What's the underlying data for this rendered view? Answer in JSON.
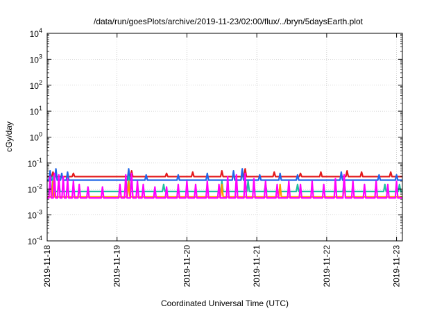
{
  "chart_data": {
    "type": "line",
    "title": "/data/run/goesPlots/archive/2019-11-23/02:00/flux/../bryn/5daysEarth.plot",
    "xlabel": "Coordinated Universal Time (UTC)",
    "ylabel": "cGy/day",
    "y_scale": "log",
    "ylim": [
      0.0001,
      10000
    ],
    "xlim": [
      "2019-11-18T00:00",
      "2019-11-23T02:00"
    ],
    "grid": true,
    "x_ticks": [
      "2019-11-18",
      "2019-11-19",
      "2019-11-20",
      "2019-11-21",
      "2019-11-22",
      "2019-11-23"
    ],
    "y_ticks": [
      {
        "value": 0.0001,
        "base": "10",
        "exp": "-4"
      },
      {
        "value": 0.001,
        "base": "10",
        "exp": "-3"
      },
      {
        "value": 0.01,
        "base": "10",
        "exp": "-2"
      },
      {
        "value": 0.1,
        "base": "10",
        "exp": "-1"
      },
      {
        "value": 1,
        "base": "10",
        "exp": "0"
      },
      {
        "value": 10,
        "base": "10",
        "exp": "1"
      },
      {
        "value": 100,
        "base": "10",
        "exp": "2"
      },
      {
        "value": 1000,
        "base": "10",
        "exp": "3"
      },
      {
        "value": 10000,
        "base": "10",
        "exp": "4"
      }
    ],
    "series": [
      {
        "color": "#e41a1c",
        "baseline": 0.03,
        "spikes": [
          {
            "x": "2019-11-18T02:00",
            "y": 0.045
          },
          {
            "x": "2019-11-18T09:00",
            "y": 0.04
          },
          {
            "x": "2019-11-19T05:00",
            "y": 0.05
          },
          {
            "x": "2019-11-19T17:00",
            "y": 0.04
          },
          {
            "x": "2019-11-20T02:00",
            "y": 0.045
          },
          {
            "x": "2019-11-20T12:00",
            "y": 0.05
          },
          {
            "x": "2019-11-20T20:00",
            "y": 0.06
          },
          {
            "x": "2019-11-21T06:00",
            "y": 0.045
          },
          {
            "x": "2019-11-21T15:00",
            "y": 0.04
          },
          {
            "x": "2019-11-21T22:00",
            "y": 0.045
          },
          {
            "x": "2019-11-22T07:00",
            "y": 0.05
          },
          {
            "x": "2019-11-22T12:00",
            "y": 0.045
          },
          {
            "x": "2019-11-22T22:00",
            "y": 0.045
          }
        ]
      },
      {
        "color": "#2166e8",
        "baseline": 0.022,
        "spikes": [
          {
            "x": "2019-11-18T01:00",
            "y": 0.05
          },
          {
            "x": "2019-11-18T03:00",
            "y": 0.06
          },
          {
            "x": "2019-11-18T05:00",
            "y": 0.04
          },
          {
            "x": "2019-11-18T07:00",
            "y": 0.045
          },
          {
            "x": "2019-11-19T04:00",
            "y": 0.06
          },
          {
            "x": "2019-11-19T10:00",
            "y": 0.035
          },
          {
            "x": "2019-11-19T21:00",
            "y": 0.035
          },
          {
            "x": "2019-11-20T07:00",
            "y": 0.04
          },
          {
            "x": "2019-11-20T16:00",
            "y": 0.05
          },
          {
            "x": "2019-11-20T19:00",
            "y": 0.06
          },
          {
            "x": "2019-11-21T01:00",
            "y": 0.035
          },
          {
            "x": "2019-11-21T08:00",
            "y": 0.04
          },
          {
            "x": "2019-11-21T14:00",
            "y": 0.035
          },
          {
            "x": "2019-11-22T05:00",
            "y": 0.045
          },
          {
            "x": "2019-11-22T18:00",
            "y": 0.035
          },
          {
            "x": "2019-11-23T00:00",
            "y": 0.035
          }
        ]
      },
      {
        "color": "#1fbf9f",
        "baseline": 0.008,
        "spikes": [
          {
            "x": "2019-11-18T02:00",
            "y": 0.03
          },
          {
            "x": "2019-11-18T04:00",
            "y": 0.02
          },
          {
            "x": "2019-11-19T04:00",
            "y": 0.03
          },
          {
            "x": "2019-11-19T16:00",
            "y": 0.015
          },
          {
            "x": "2019-11-20T12:00",
            "y": 0.02
          },
          {
            "x": "2019-11-20T21:00",
            "y": 0.02
          },
          {
            "x": "2019-11-21T03:00",
            "y": 0.015
          },
          {
            "x": "2019-11-21T14:00",
            "y": 0.015
          },
          {
            "x": "2019-11-22T06:00",
            "y": 0.02
          },
          {
            "x": "2019-11-22T20:00",
            "y": 0.015
          },
          {
            "x": "2019-11-23T01:00",
            "y": 0.015
          }
        ]
      },
      {
        "color": "#ff9900",
        "baseline": 0.005,
        "spikes": [
          {
            "x": "2019-11-18T02:00",
            "y": 0.02
          },
          {
            "x": "2019-11-19T04:00",
            "y": 0.02
          },
          {
            "x": "2019-11-20T12:00",
            "y": 0.015
          },
          {
            "x": "2019-11-21T08:00",
            "y": 0.015
          },
          {
            "x": "2019-11-22T06:00",
            "y": 0.015
          }
        ]
      },
      {
        "color": "#ff00ff",
        "baseline": 0.0045,
        "spikes": [
          {
            "x": "2019-11-18T01:00",
            "y": 0.03
          },
          {
            "x": "2019-11-18T02:30",
            "y": 0.04
          },
          {
            "x": "2019-11-18T04:00",
            "y": 0.035
          },
          {
            "x": "2019-11-18T05:30",
            "y": 0.03
          },
          {
            "x": "2019-11-18T07:00",
            "y": 0.025
          },
          {
            "x": "2019-11-18T09:00",
            "y": 0.02
          },
          {
            "x": "2019-11-18T11:00",
            "y": 0.015
          },
          {
            "x": "2019-11-18T14:00",
            "y": 0.012
          },
          {
            "x": "2019-11-18T19:00",
            "y": 0.012
          },
          {
            "x": "2019-11-19T01:00",
            "y": 0.015
          },
          {
            "x": "2019-11-19T03:00",
            "y": 0.035
          },
          {
            "x": "2019-11-19T05:00",
            "y": 0.04
          },
          {
            "x": "2019-11-19T07:00",
            "y": 0.02
          },
          {
            "x": "2019-11-19T09:00",
            "y": 0.015
          },
          {
            "x": "2019-11-19T13:00",
            "y": 0.012
          },
          {
            "x": "2019-11-19T17:00",
            "y": 0.012
          },
          {
            "x": "2019-11-19T21:00",
            "y": 0.015
          },
          {
            "x": "2019-11-20T00:00",
            "y": 0.02
          },
          {
            "x": "2019-11-20T03:00",
            "y": 0.015
          },
          {
            "x": "2019-11-20T07:00",
            "y": 0.02
          },
          {
            "x": "2019-11-20T11:00",
            "y": 0.015
          },
          {
            "x": "2019-11-20T14:00",
            "y": 0.03
          },
          {
            "x": "2019-11-20T17:00",
            "y": 0.035
          },
          {
            "x": "2019-11-20T20:00",
            "y": 0.04
          },
          {
            "x": "2019-11-20T23:00",
            "y": 0.025
          },
          {
            "x": "2019-11-21T03:00",
            "y": 0.02
          },
          {
            "x": "2019-11-21T07:00",
            "y": 0.015
          },
          {
            "x": "2019-11-21T11:00",
            "y": 0.02
          },
          {
            "x": "2019-11-21T15:00",
            "y": 0.015
          },
          {
            "x": "2019-11-21T19:00",
            "y": 0.02
          },
          {
            "x": "2019-11-21T23:00",
            "y": 0.015
          },
          {
            "x": "2019-11-22T03:00",
            "y": 0.025
          },
          {
            "x": "2019-11-22T06:00",
            "y": 0.035
          },
          {
            "x": "2019-11-22T09:00",
            "y": 0.02
          },
          {
            "x": "2019-11-22T13:00",
            "y": 0.015
          },
          {
            "x": "2019-11-22T17:00",
            "y": 0.02
          },
          {
            "x": "2019-11-22T21:00",
            "y": 0.015
          },
          {
            "x": "2019-11-23T00:00",
            "y": 0.02
          }
        ]
      }
    ]
  }
}
